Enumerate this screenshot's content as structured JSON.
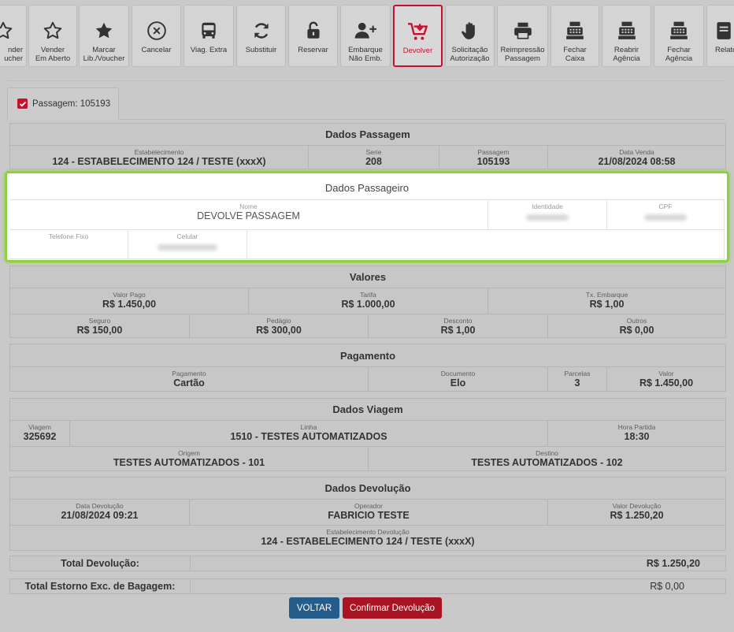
{
  "toolbar": [
    {
      "label": "nder\nucher",
      "icon": "star-outline-icon"
    },
    {
      "label": "Vender\nEm Aberto",
      "icon": "star-outline-icon"
    },
    {
      "label": "Marcar\nLib./Voucher",
      "icon": "star-filled-icon"
    },
    {
      "label": "Cancelar",
      "icon": "cancel-circle-icon"
    },
    {
      "label": "Viag. Extra",
      "icon": "bus-icon"
    },
    {
      "label": "Substituir",
      "icon": "refresh-icon"
    },
    {
      "label": "Reservar",
      "icon": "unlock-icon"
    },
    {
      "label": "Embarque\nNão Emb.",
      "icon": "user-plus-icon"
    },
    {
      "label": "Devolver",
      "icon": "cart-return-icon"
    },
    {
      "label": "Solicitação\nAutorização",
      "icon": "hand-icon"
    },
    {
      "label": "Reimpressão\nPassagem",
      "icon": "printer-icon"
    },
    {
      "label": "Fechar\nCaixa",
      "icon": "cash-register-icon"
    },
    {
      "label": "Reabrir\nAgência",
      "icon": "cash-register-icon"
    },
    {
      "label": "Fechar\nAgência",
      "icon": "cash-register-icon"
    },
    {
      "label": "Relató",
      "icon": "report-icon"
    }
  ],
  "tab": {
    "label": "Passagem: 105193"
  },
  "passagem": {
    "title": "Dados Passagem",
    "estabelecimento_label": "Estabelecimento",
    "estabelecimento": "124 - ESTABELECIMENTO 124 / TESTE (xxxX)",
    "serie_label": "Serie",
    "serie": "208",
    "passagem_label": "Passagem",
    "passagem": "105193",
    "data_venda_label": "Data Venda",
    "data_venda": "21/08/2024 08:58"
  },
  "passageiro": {
    "title": "Dados Passageiro",
    "nome_label": "Nome",
    "nome": "DEVOLVE PASSAGEM",
    "identidade_label": "Identidade",
    "cpf_label": "CPF",
    "telefone_label": "Telefone Fixo",
    "celular_label": "Celular"
  },
  "valores": {
    "title": "Valores",
    "valor_pago_label": "Valor Pago",
    "valor_pago": "R$ 1.450,00",
    "tarifa_label": "Tarifa",
    "tarifa": "R$ 1.000,00",
    "tx_embarque_label": "Tx. Embarque",
    "tx_embarque": "R$ 1,00",
    "seguro_label": "Seguro",
    "seguro": "R$ 150,00",
    "pedagio_label": "Pedágio",
    "pedagio": "R$ 300,00",
    "desconto_label": "Desconto",
    "desconto": "R$ 1,00",
    "outros_label": "Outros",
    "outros": "R$ 0,00"
  },
  "pagamento": {
    "title": "Pagamento",
    "pagamento_label": "Pagamento",
    "pagamento": "Cartão",
    "documento_label": "Documento",
    "documento": "Elo",
    "parcelas_label": "Parcelas",
    "parcelas": "3",
    "valor_label": "Valor",
    "valor": "R$ 1.450,00"
  },
  "viagem": {
    "title": "Dados Viagem",
    "viagem_label": "Viagem",
    "viagem": "325692",
    "linha_label": "Linha",
    "linha": "1510 - TESTES AUTOMATIZADOS",
    "hora_label": "Hora Partida",
    "hora": "18:30",
    "origem_label": "Origem",
    "origem": "TESTES AUTOMATIZADOS - 101",
    "destino_label": "Destino",
    "destino": "TESTES AUTOMATIZADOS - 102"
  },
  "devolucao": {
    "title": "Dados Devolução",
    "data_label": "Data Devolução",
    "data": "21/08/2024 09:21",
    "operador_label": "Operador",
    "operador": "FABRICIO TESTE",
    "valor_label": "Valor Devolução",
    "valor": "R$ 1.250,20",
    "estab_label": "Estabelecimento Devolução",
    "estab": "124 - ESTABELECIMENTO 124 / TESTE (xxxX)"
  },
  "totals": {
    "devolucao_label": "Total Devolução:",
    "devolucao": "R$ 1.250,20",
    "estorno_label": "Total Estorno Exc. de Bagagem:",
    "estorno": "R$ 0,00"
  },
  "buttons": {
    "voltar": "VOLTAR",
    "confirmar": "Confirmar Devolução"
  },
  "colors": {
    "accent": "#c8102e",
    "highlight": "#8bd23e",
    "primary": "#245d8a"
  }
}
